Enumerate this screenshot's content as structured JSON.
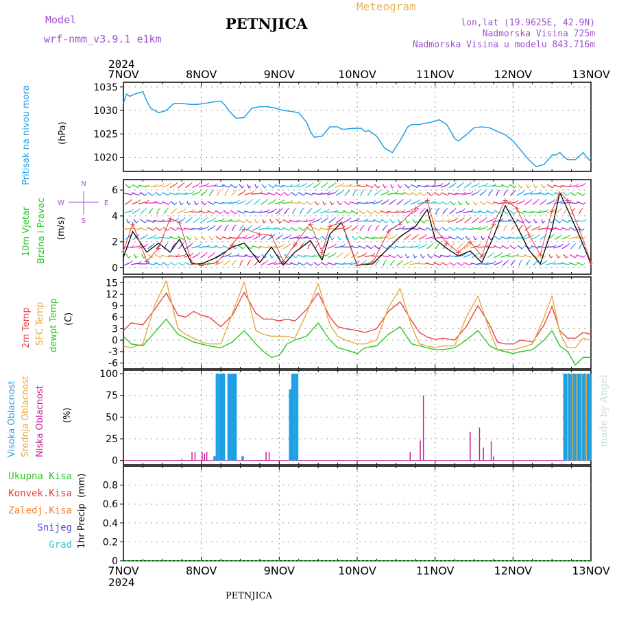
{
  "header": {
    "model_label": "Model",
    "model_name": "wrf-nmm_v3.9.1 e1km",
    "station": "PETNJICA",
    "product": "Meteogram",
    "coords": "lon,lat (19.9625E, 42.9N)",
    "elevation": "Nadmorska Visina 725m",
    "model_elevation": "Nadmorska Visina u modelu 843.716m",
    "footer_station": "PETNJICA",
    "credit": "made by Angel",
    "year_top": "2024",
    "year_bottom": "2024"
  },
  "colors": {
    "pressure": "#1ea0e6",
    "wind_speed": "#000000",
    "wind_gust": "#e63c3c",
    "temp2m": "#e64646",
    "sfc_temp": "#e6aa3c",
    "dewpoint": "#28c828",
    "high_cloud": "#1ea0e6",
    "mid_cloud": "#e6aa3c",
    "low_cloud": "#c81e96",
    "total_precip": "#28c828",
    "conv_precip": "#e63c3c",
    "frozen_precip": "#f08228",
    "snow": "#5050e6",
    "hail": "#3cc8c8",
    "purple_text": "#a050d2",
    "credit": "#c8dcc8"
  },
  "chart_data": [
    {
      "type": "line",
      "panel": "pressure",
      "ylabel_name": "Pritisak na nivou mora",
      "unit": "(hPa)",
      "x_ticks": [
        "7NOV",
        "8NOV",
        "9NOV",
        "10NOV",
        "11NOV",
        "12NOV",
        "13NOV"
      ],
      "ylim": [
        1017,
        1036
      ],
      "y_ticks": [
        "1020",
        "1025",
        "1030",
        "1035"
      ],
      "grid": true,
      "x_days": [
        0,
        0.04,
        0.08,
        0.15,
        0.25,
        0.3,
        0.35,
        0.45,
        0.55,
        0.65,
        0.75,
        0.85,
        0.95,
        1.05,
        1.15,
        1.25,
        1.3,
        1.35,
        1.45,
        1.55,
        1.65,
        1.75,
        1.85,
        1.95,
        2.05,
        2.15,
        2.25,
        2.35,
        2.4,
        2.45,
        2.55,
        2.65,
        2.75,
        2.8,
        2.85,
        2.95,
        3.05,
        3.1,
        3.15,
        3.25,
        3.35,
        3.45,
        3.55,
        3.65,
        3.7,
        3.75,
        3.8,
        3.85,
        3.95,
        4.05,
        4.1,
        4.15,
        4.2,
        4.25,
        4.3,
        4.4,
        4.5,
        4.6,
        4.7,
        4.8,
        4.9,
        5.0,
        5.1,
        5.2,
        5.3,
        5.4,
        5.5,
        5.55,
        5.6,
        5.7,
        5.8,
        5.9,
        6.0
      ],
      "values": [
        1031.5,
        1033.5,
        1033,
        1033.5,
        1034,
        1032,
        1030.5,
        1029.5,
        1030,
        1031.5,
        1031.5,
        1031.3,
        1031.3,
        1031.5,
        1031.8,
        1032,
        1031.2,
        1030,
        1028.3,
        1028.5,
        1030.5,
        1030.8,
        1030.8,
        1030.5,
        1030,
        1029.8,
        1029.5,
        1027.5,
        1025.5,
        1024.3,
        1024.5,
        1026.5,
        1026.5,
        1026,
        1026,
        1026.2,
        1026.2,
        1025.5,
        1025.7,
        1024.5,
        1022,
        1021,
        1023.5,
        1026.5,
        1027,
        1027,
        1027,
        1027.2,
        1027.5,
        1028,
        1027.5,
        1027,
        1025.5,
        1024,
        1023.5,
        1024.8,
        1026.3,
        1026.5,
        1026.3,
        1025.5,
        1024.8,
        1023.5,
        1021.5,
        1019.5,
        1018,
        1018.5,
        1020.5,
        1020.5,
        1021,
        1019.5,
        1019.5,
        1021,
        1019
      ]
    },
    {
      "type": "line",
      "panel": "wind",
      "ylabel_name": "10m Vjetar",
      "ylabel_sub": "Brzina i Pravac",
      "unit": "(m/s)",
      "compass": [
        "N",
        "W",
        "E",
        "S"
      ],
      "ylim": [
        -0.5,
        6.8
      ],
      "y_ticks": [
        "0",
        "2",
        "4",
        "6"
      ],
      "grid": true,
      "barb_levels_ms": [
        0.3,
        0.9,
        1.6,
        2.3,
        3.0,
        3.6,
        4.3,
        5.0,
        5.7,
        6.3
      ],
      "series": [
        {
          "name": "speed",
          "x_days": [
            0,
            0.12,
            0.3,
            0.45,
            0.6,
            0.72,
            0.88,
            1.0,
            1.2,
            1.4,
            1.55,
            1.75,
            1.9,
            2.05,
            2.2,
            2.4,
            2.55,
            2.65,
            2.8,
            3.0,
            3.2,
            3.4,
            3.55,
            3.75,
            3.9,
            4.0,
            4.15,
            4.3,
            4.45,
            4.6,
            4.75,
            4.9,
            5.05,
            5.2,
            5.35,
            5.5,
            5.6,
            5.7,
            5.85,
            6.0
          ],
          "values": [
            0.8,
            2.8,
            1.2,
            1.9,
            1.2,
            2.2,
            0.3,
            0.3,
            0.8,
            1.6,
            1.9,
            0.4,
            1.6,
            0.2,
            1.2,
            2.1,
            0.6,
            2.6,
            3.5,
            0.2,
            0.3,
            1.5,
            2.4,
            3.2,
            4.5,
            2.2,
            1.5,
            0.9,
            1.3,
            0.4,
            2.4,
            4.8,
            3.2,
            1.4,
            0.3,
            3.0,
            5.8,
            4.5,
            2.5,
            0.3
          ]
        },
        {
          "name": "gust",
          "x_days": [
            0,
            0.12,
            0.3,
            0.45,
            0.6,
            0.72,
            0.88,
            1.0,
            1.2,
            1.4,
            1.55,
            1.75,
            1.9,
            2.05,
            2.2,
            2.4,
            2.55,
            2.65,
            2.8,
            3.0,
            3.2,
            3.4,
            3.55,
            3.75,
            3.9,
            4.0,
            4.15,
            4.3,
            4.45,
            4.6,
            4.75,
            4.9,
            5.05,
            5.2,
            5.35,
            5.5,
            5.6,
            5.7,
            5.85,
            6.0
          ],
          "values": [
            1.3,
            3.4,
            0.5,
            1.5,
            3.8,
            3.5,
            0.4,
            0.2,
            0.4,
            1.8,
            3.0,
            2.6,
            2.5,
            0.5,
            1.8,
            3.4,
            1.2,
            3.2,
            3.5,
            0.2,
            0.4,
            2.8,
            3.4,
            4.6,
            5.2,
            3.0,
            1.9,
            1.2,
            2.0,
            0.9,
            3.4,
            5.2,
            4.6,
            2.6,
            1.0,
            4.4,
            5.8,
            5.2,
            3.0,
            0.4
          ]
        }
      ]
    },
    {
      "type": "line",
      "panel": "temperature",
      "ylabel_names": [
        "2m Temp",
        "SFC Temp",
        "dewpt Temp"
      ],
      "unit": "(C)",
      "ylim": [
        -7.5,
        16.5
      ],
      "y_ticks": [
        "15",
        "12",
        "9",
        "6",
        "3",
        "0",
        "-3",
        "-6"
      ],
      "grid": true,
      "series": [
        {
          "name": "2m Temp",
          "x_days": [
            0,
            0.1,
            0.25,
            0.4,
            0.55,
            0.7,
            0.8,
            0.9,
            1.0,
            1.1,
            1.25,
            1.4,
            1.55,
            1.7,
            1.8,
            1.9,
            2.0,
            2.1,
            2.2,
            2.35,
            2.5,
            2.65,
            2.75,
            2.85,
            3.0,
            3.1,
            3.25,
            3.4,
            3.55,
            3.7,
            3.8,
            3.9,
            4.0,
            4.1,
            4.25,
            4.4,
            4.55,
            4.7,
            4.8,
            4.9,
            5.0,
            5.1,
            5.25,
            5.4,
            5.5,
            5.6,
            5.7,
            5.8,
            5.9,
            6.0
          ],
          "values": [
            2.5,
            4.5,
            4,
            8,
            12.3,
            6.5,
            6,
            7.5,
            6.5,
            6,
            3.5,
            6.5,
            12.5,
            7,
            5.5,
            5.5,
            5,
            5.5,
            5,
            8,
            12.3,
            6,
            3.5,
            3,
            2.5,
            2,
            3,
            7.5,
            10,
            5,
            2,
            0.8,
            0.2,
            0.5,
            0,
            3.5,
            9,
            4,
            -0.5,
            -1,
            -1,
            0,
            -0.5,
            4,
            8.8,
            2.5,
            0.5,
            0.5,
            2,
            1.5
          ]
        },
        {
          "name": "SFC Temp",
          "x_days": [
            0,
            0.1,
            0.25,
            0.4,
            0.55,
            0.7,
            0.8,
            0.9,
            1.0,
            1.1,
            1.25,
            1.4,
            1.55,
            1.7,
            1.8,
            1.9,
            2.0,
            2.1,
            2.2,
            2.35,
            2.5,
            2.65,
            2.75,
            2.85,
            3.0,
            3.1,
            3.25,
            3.4,
            3.55,
            3.7,
            3.8,
            3.9,
            4.0,
            4.1,
            4.25,
            4.4,
            4.55,
            4.7,
            4.8,
            4.9,
            5.0,
            5.1,
            5.25,
            5.4,
            5.5,
            5.6,
            5.7,
            5.8,
            5.9,
            6.0
          ],
          "values": [
            -1.5,
            -2,
            -1,
            9,
            15.5,
            3,
            1.5,
            0.5,
            -0.5,
            -1,
            -1,
            7,
            15.2,
            2.5,
            1.5,
            1,
            1,
            1,
            0.5,
            7,
            14.8,
            4,
            1,
            0,
            -1,
            -1,
            0,
            8.5,
            13.5,
            3.5,
            -1,
            -1.5,
            -2,
            -1.5,
            -1.5,
            6,
            11.5,
            2.5,
            -2.5,
            -2.5,
            -2.5,
            -2,
            -1,
            6,
            11.5,
            2,
            -2,
            -2,
            0.5,
            0
          ]
        },
        {
          "name": "dewpt Temp",
          "x_days": [
            0,
            0.1,
            0.25,
            0.4,
            0.55,
            0.7,
            0.8,
            0.9,
            1.0,
            1.1,
            1.25,
            1.4,
            1.55,
            1.7,
            1.8,
            1.9,
            2.0,
            2.1,
            2.2,
            2.35,
            2.5,
            2.65,
            2.75,
            2.85,
            3.0,
            3.1,
            3.25,
            3.4,
            3.55,
            3.7,
            3.8,
            3.9,
            4.0,
            4.1,
            4.25,
            4.4,
            4.55,
            4.7,
            4.8,
            4.9,
            5.0,
            5.1,
            5.25,
            5.4,
            5.5,
            5.6,
            5.7,
            5.8,
            5.9,
            6.0
          ],
          "values": [
            1,
            -1,
            -1.5,
            2,
            5.5,
            1.5,
            0.5,
            -0.5,
            -1,
            -1.5,
            -2,
            -0.5,
            2.5,
            -1,
            -3,
            -4.5,
            -4,
            -1,
            0,
            1,
            4.5,
            0,
            -2,
            -2.5,
            -3.5,
            -2,
            -1.5,
            1.5,
            3.5,
            -1,
            -1.5,
            -2,
            -2.5,
            -2.5,
            -2,
            0,
            2.5,
            -1.5,
            -2.5,
            -3,
            -3.5,
            -3,
            -2.5,
            0,
            2.5,
            -1.5,
            -3,
            -6.5,
            -4.5,
            -4.5
          ]
        }
      ]
    },
    {
      "type": "bar",
      "panel": "cloud",
      "ylabel_names": [
        "Visoka Oblacnost",
        "Srednja Oblacnost",
        "Niska Oblacnost"
      ],
      "unit": "(%)",
      "ylim": [
        -5,
        104
      ],
      "y_ticks": [
        "0",
        "25",
        "50",
        "75",
        "100"
      ],
      "grid": true,
      "series": [
        {
          "name": "Visoka Oblacnost",
          "x_days": [
            1.17,
            1.2,
            1.23,
            1.26,
            1.29,
            1.35,
            1.38,
            1.41,
            1.44,
            1.53,
            2.14,
            2.17,
            2.2,
            2.23,
            5.66,
            5.69,
            5.72,
            5.75,
            5.78,
            5.81,
            5.84,
            5.87,
            5.9,
            5.93,
            5.96,
            5.99
          ],
          "values": [
            5,
            100,
            100,
            100,
            100,
            100,
            100,
            100,
            100,
            5,
            82,
            100,
            100,
            100,
            100,
            100,
            100,
            100,
            100,
            100,
            100,
            100,
            100,
            100,
            100,
            100
          ]
        },
        {
          "name": "Srednja Oblacnost",
          "x_days": [
            5.7,
            5.76,
            5.82,
            5.88,
            5.94
          ],
          "values": [
            100,
            100,
            100,
            100,
            100
          ]
        },
        {
          "name": "Niska Oblacnost",
          "x_days": [
            0.75,
            0.88,
            0.92,
            1.01,
            1.04,
            1.07,
            1.83,
            1.87,
            3.68,
            3.81,
            3.85,
            4.45,
            4.57,
            4.62,
            4.72,
            4.75
          ],
          "values": [
            2,
            10,
            10,
            10,
            8,
            10,
            10,
            10,
            10,
            23,
            75,
            33,
            38,
            15,
            22,
            5
          ]
        }
      ]
    },
    {
      "type": "line",
      "panel": "precipitation",
      "ylabel_name": "1hr Precip",
      "unit": "(mm)",
      "legend": [
        "Ukupna Kisa",
        "Konvek.Kisa",
        "Zaledj.Kisa",
        "Snijeg",
        "Grad"
      ],
      "ylim": [
        0,
        1.0
      ],
      "y_ticks": [
        "0",
        "0.2",
        "0.4",
        "0.6",
        "0.8"
      ],
      "grid": true,
      "x_ticks": [
        "7NOV",
        "8NOV",
        "9NOV",
        "10NOV",
        "11NOV",
        "12NOV",
        "13NOV"
      ],
      "values": [
        0,
        0,
        0,
        0,
        0,
        0,
        0
      ]
    }
  ]
}
